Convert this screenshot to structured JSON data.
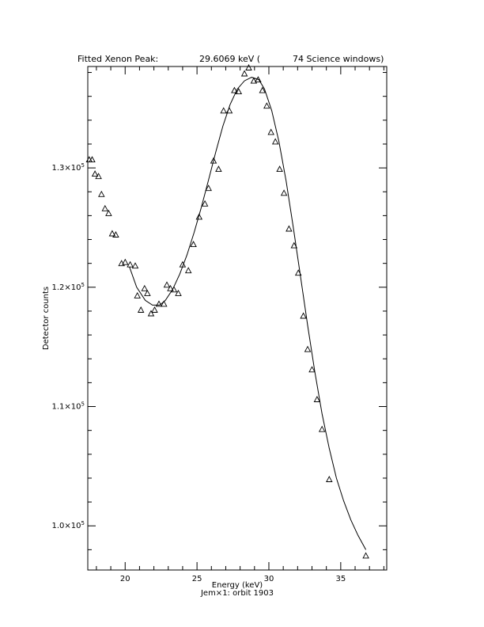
{
  "chart_data": {
    "type": "scatter",
    "title": {
      "label": "Fitted Xenon Peak:",
      "value": "29.6069 keV (",
      "windows": "74 Science windows)"
    },
    "xlabel": "Energy (keV)",
    "subtitle": "Jem×1: orbit 1903",
    "ylabel": "Detector counts",
    "xlim": [
      17.4,
      38.2
    ],
    "ylim": [
      96300,
      138500
    ],
    "x_ticks": [
      {
        "value": 20,
        "label": "20"
      },
      {
        "value": 25,
        "label": "25"
      },
      {
        "value": 30,
        "label": "30"
      },
      {
        "value": 35,
        "label": "35"
      }
    ],
    "y_ticks": [
      {
        "value": 100000,
        "mantissa": "1.0×10",
        "exp": "5"
      },
      {
        "value": 110000,
        "mantissa": "1.1×10",
        "exp": "5"
      },
      {
        "value": 120000,
        "mantissa": "1.2×10",
        "exp": "5"
      },
      {
        "value": 130000,
        "mantissa": "1.3×10",
        "exp": "5"
      }
    ],
    "series": [
      {
        "marker": "triangle",
        "points": [
          [
            17.5,
            130700
          ],
          [
            17.7,
            130700
          ],
          [
            17.9,
            129500
          ],
          [
            18.15,
            129300
          ],
          [
            18.35,
            127800
          ],
          [
            18.6,
            126600
          ],
          [
            18.85,
            126200
          ],
          [
            19.1,
            124500
          ],
          [
            19.35,
            124400
          ],
          [
            19.75,
            122000
          ],
          [
            20.0,
            122100
          ],
          [
            20.35,
            121900
          ],
          [
            20.7,
            121800
          ],
          [
            20.85,
            119300
          ],
          [
            21.1,
            118100
          ],
          [
            21.35,
            119900
          ],
          [
            21.55,
            119500
          ],
          [
            21.8,
            117800
          ],
          [
            22.05,
            118100
          ],
          [
            22.35,
            118600
          ],
          [
            22.7,
            118600
          ],
          [
            22.9,
            120200
          ],
          [
            23.15,
            119900
          ],
          [
            23.4,
            119800
          ],
          [
            23.7,
            119500
          ],
          [
            24.0,
            121900
          ],
          [
            24.4,
            121400
          ],
          [
            24.75,
            123600
          ],
          [
            25.15,
            125900
          ],
          [
            25.55,
            127000
          ],
          [
            25.8,
            128300
          ],
          [
            26.15,
            130600
          ],
          [
            26.5,
            129900
          ],
          [
            26.85,
            134800
          ],
          [
            27.25,
            134800
          ],
          [
            27.6,
            136500
          ],
          [
            27.9,
            136400
          ],
          [
            28.3,
            137900
          ],
          [
            28.6,
            138400
          ],
          [
            28.95,
            137300
          ],
          [
            29.25,
            137400
          ],
          [
            29.55,
            136500
          ],
          [
            29.85,
            135200
          ],
          [
            30.15,
            133000
          ],
          [
            30.45,
            132200
          ],
          [
            30.75,
            129900
          ],
          [
            31.05,
            127900
          ],
          [
            31.4,
            124900
          ],
          [
            31.75,
            123500
          ],
          [
            32.05,
            121200
          ],
          [
            32.4,
            117600
          ],
          [
            32.7,
            114800
          ],
          [
            33.0,
            113100
          ],
          [
            33.35,
            110600
          ],
          [
            33.7,
            108100
          ],
          [
            34.2,
            103900
          ],
          [
            36.75,
            97500
          ]
        ]
      },
      {
        "marker": "line",
        "points": [
          [
            20.3,
            121700
          ],
          [
            20.8,
            120000
          ],
          [
            21.4,
            118900
          ],
          [
            21.9,
            118500
          ],
          [
            22.4,
            118500
          ],
          [
            22.8,
            118900
          ],
          [
            23.3,
            119800
          ],
          [
            23.8,
            121100
          ],
          [
            24.3,
            122700
          ],
          [
            24.8,
            124600
          ],
          [
            25.3,
            126700
          ],
          [
            25.8,
            129000
          ],
          [
            26.3,
            131300
          ],
          [
            26.8,
            133500
          ],
          [
            27.3,
            135300
          ],
          [
            27.8,
            136600
          ],
          [
            28.3,
            137300
          ],
          [
            28.8,
            137600
          ],
          [
            29.3,
            137400
          ],
          [
            29.7,
            136600
          ],
          [
            30.2,
            134800
          ],
          [
            30.7,
            132200
          ],
          [
            31.2,
            128900
          ],
          [
            31.7,
            125000
          ],
          [
            32.2,
            120900
          ],
          [
            32.7,
            116800
          ],
          [
            33.2,
            112900
          ],
          [
            33.7,
            109400
          ],
          [
            34.2,
            106500
          ],
          [
            34.7,
            104000
          ],
          [
            35.2,
            102100
          ],
          [
            35.7,
            100500
          ],
          [
            36.2,
            99200
          ],
          [
            36.75,
            98000
          ]
        ]
      }
    ]
  }
}
